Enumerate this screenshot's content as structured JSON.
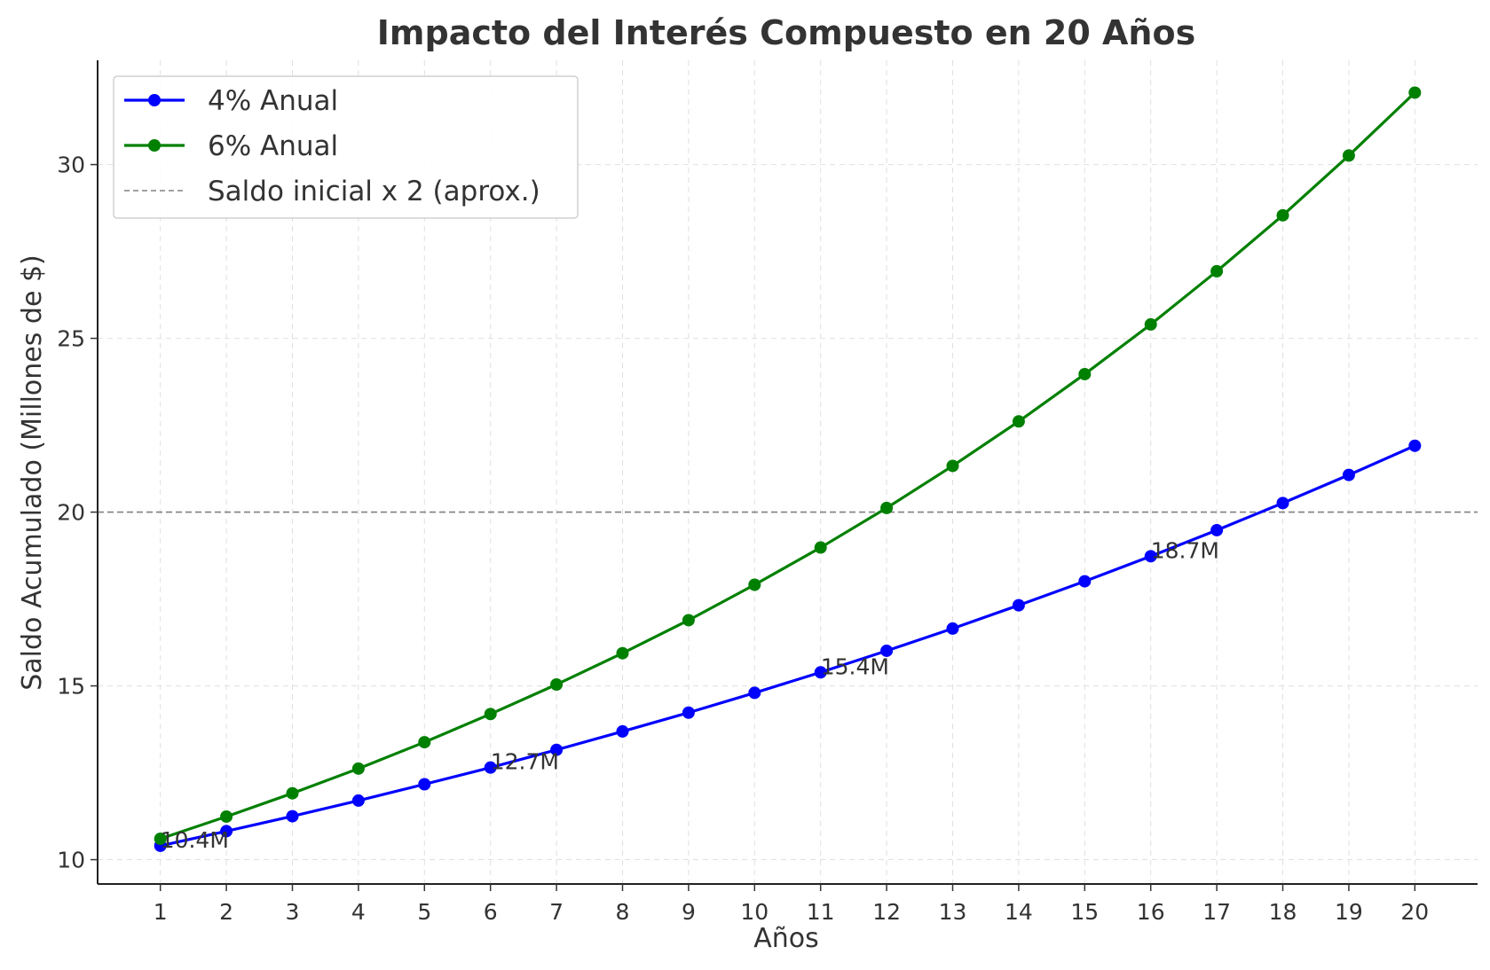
{
  "chart_data": {
    "type": "line",
    "title": "Impacto del Interés Compuesto en 20 Años",
    "xlabel": "Años",
    "ylabel": "Saldo Acumulado (Millones de $)",
    "x": [
      1,
      2,
      3,
      4,
      5,
      6,
      7,
      8,
      9,
      10,
      11,
      12,
      13,
      14,
      15,
      16,
      17,
      18,
      19,
      20
    ],
    "xlim": [
      0.05,
      20.95
    ],
    "ylim": [
      9.3,
      33.0
    ],
    "yticks": [
      10,
      15,
      20,
      25,
      30
    ],
    "grid": true,
    "legend_position": "top-left",
    "series": [
      {
        "name": "4% Anual",
        "color": "#0000ff",
        "marker": "circle",
        "values": [
          10.4,
          10.82,
          11.25,
          11.7,
          12.17,
          12.65,
          13.16,
          13.69,
          14.23,
          14.8,
          15.39,
          16.01,
          16.65,
          17.32,
          18.01,
          18.73,
          19.48,
          20.26,
          21.07,
          21.91
        ]
      },
      {
        "name": "6% Anual",
        "color": "#008000",
        "marker": "circle",
        "values": [
          10.6,
          11.24,
          11.91,
          12.62,
          13.38,
          14.19,
          15.04,
          15.94,
          16.89,
          17.91,
          18.98,
          20.12,
          21.33,
          22.61,
          23.97,
          25.4,
          26.93,
          28.54,
          30.26,
          32.07
        ]
      }
    ],
    "reference_line": {
      "name": "Saldo inicial x 2 (aprox.)",
      "y": 20,
      "color": "#808080",
      "style": "dashed"
    },
    "annotations": [
      {
        "x": 1,
        "y": 10.4,
        "text": "10.4M"
      },
      {
        "x": 6,
        "y": 12.65,
        "text": "12.7M"
      },
      {
        "x": 11,
        "y": 15.39,
        "text": "15.4M"
      },
      {
        "x": 16,
        "y": 18.73,
        "text": "18.7M"
      }
    ]
  }
}
